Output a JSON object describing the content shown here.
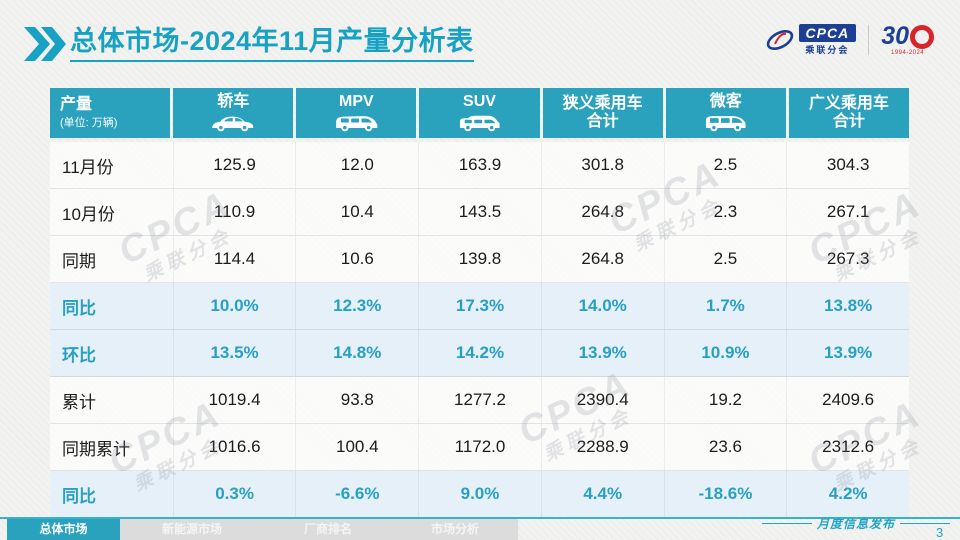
{
  "title": {
    "text": "总体市场-2024年11月产量分析表"
  },
  "logos": {
    "cpca_name": "CPCA",
    "cpca_sub": "乘联分会",
    "anniversary_number": "30",
    "anniversary_years": "1994-2024"
  },
  "table": {
    "corner": {
      "label": "产量",
      "sub": "(单位: 万辆)"
    },
    "columns": [
      {
        "label": "轿车",
        "icon": "sedan-icon"
      },
      {
        "label": "MPV",
        "icon": "mpv-icon"
      },
      {
        "label": "SUV",
        "icon": "suv-icon"
      },
      {
        "label": "狭义乘用车",
        "label2": "合计"
      },
      {
        "label": "微客",
        "icon": "microvan-icon"
      },
      {
        "label": "广义乘用车",
        "label2": "合计"
      }
    ],
    "rows": [
      {
        "label": "11月份",
        "highlight": false,
        "values": [
          "125.9",
          "12.0",
          "163.9",
          "301.8",
          "2.5",
          "304.3"
        ]
      },
      {
        "label": "10月份",
        "highlight": false,
        "values": [
          "110.9",
          "10.4",
          "143.5",
          "264.8",
          "2.3",
          "267.1"
        ]
      },
      {
        "label": "同期",
        "highlight": false,
        "values": [
          "114.4",
          "10.6",
          "139.8",
          "264.8",
          "2.5",
          "267.3"
        ]
      },
      {
        "label": "同比",
        "highlight": true,
        "values": [
          "10.0%",
          "12.3%",
          "17.3%",
          "14.0%",
          "1.7%",
          "13.8%"
        ]
      },
      {
        "label": "环比",
        "highlight": true,
        "values": [
          "13.5%",
          "14.8%",
          "14.2%",
          "13.9%",
          "10.9%",
          "13.9%"
        ]
      },
      {
        "label": "累计",
        "highlight": false,
        "values": [
          "1019.4",
          "93.8",
          "1277.2",
          "2390.4",
          "19.2",
          "2409.6"
        ]
      },
      {
        "label": "同期累计",
        "highlight": false,
        "values": [
          "1016.6",
          "100.4",
          "1172.0",
          "2288.9",
          "23.6",
          "2312.6"
        ]
      },
      {
        "label": "同比",
        "highlight": true,
        "values": [
          "0.3%",
          "-6.6%",
          "9.0%",
          "4.4%",
          "-18.6%",
          "4.2%"
        ]
      }
    ]
  },
  "watermark": {
    "line1": "CPCA",
    "line2": "乘联分会"
  },
  "footer": {
    "tabs": [
      {
        "label": "总体市场",
        "active": true
      },
      {
        "label": "新能源市场",
        "active": false
      },
      {
        "label": "厂商排名",
        "active": false
      },
      {
        "label": "市场分析",
        "active": false
      }
    ],
    "publication": "月度信息发布",
    "page_number": "3"
  },
  "colors": {
    "accent": "#17a2c4",
    "header_bg": "#2aa2bd",
    "highlight_bg": "#e4f0f7",
    "logo_blue": "#1c3f94",
    "logo_red": "#d8252a"
  }
}
